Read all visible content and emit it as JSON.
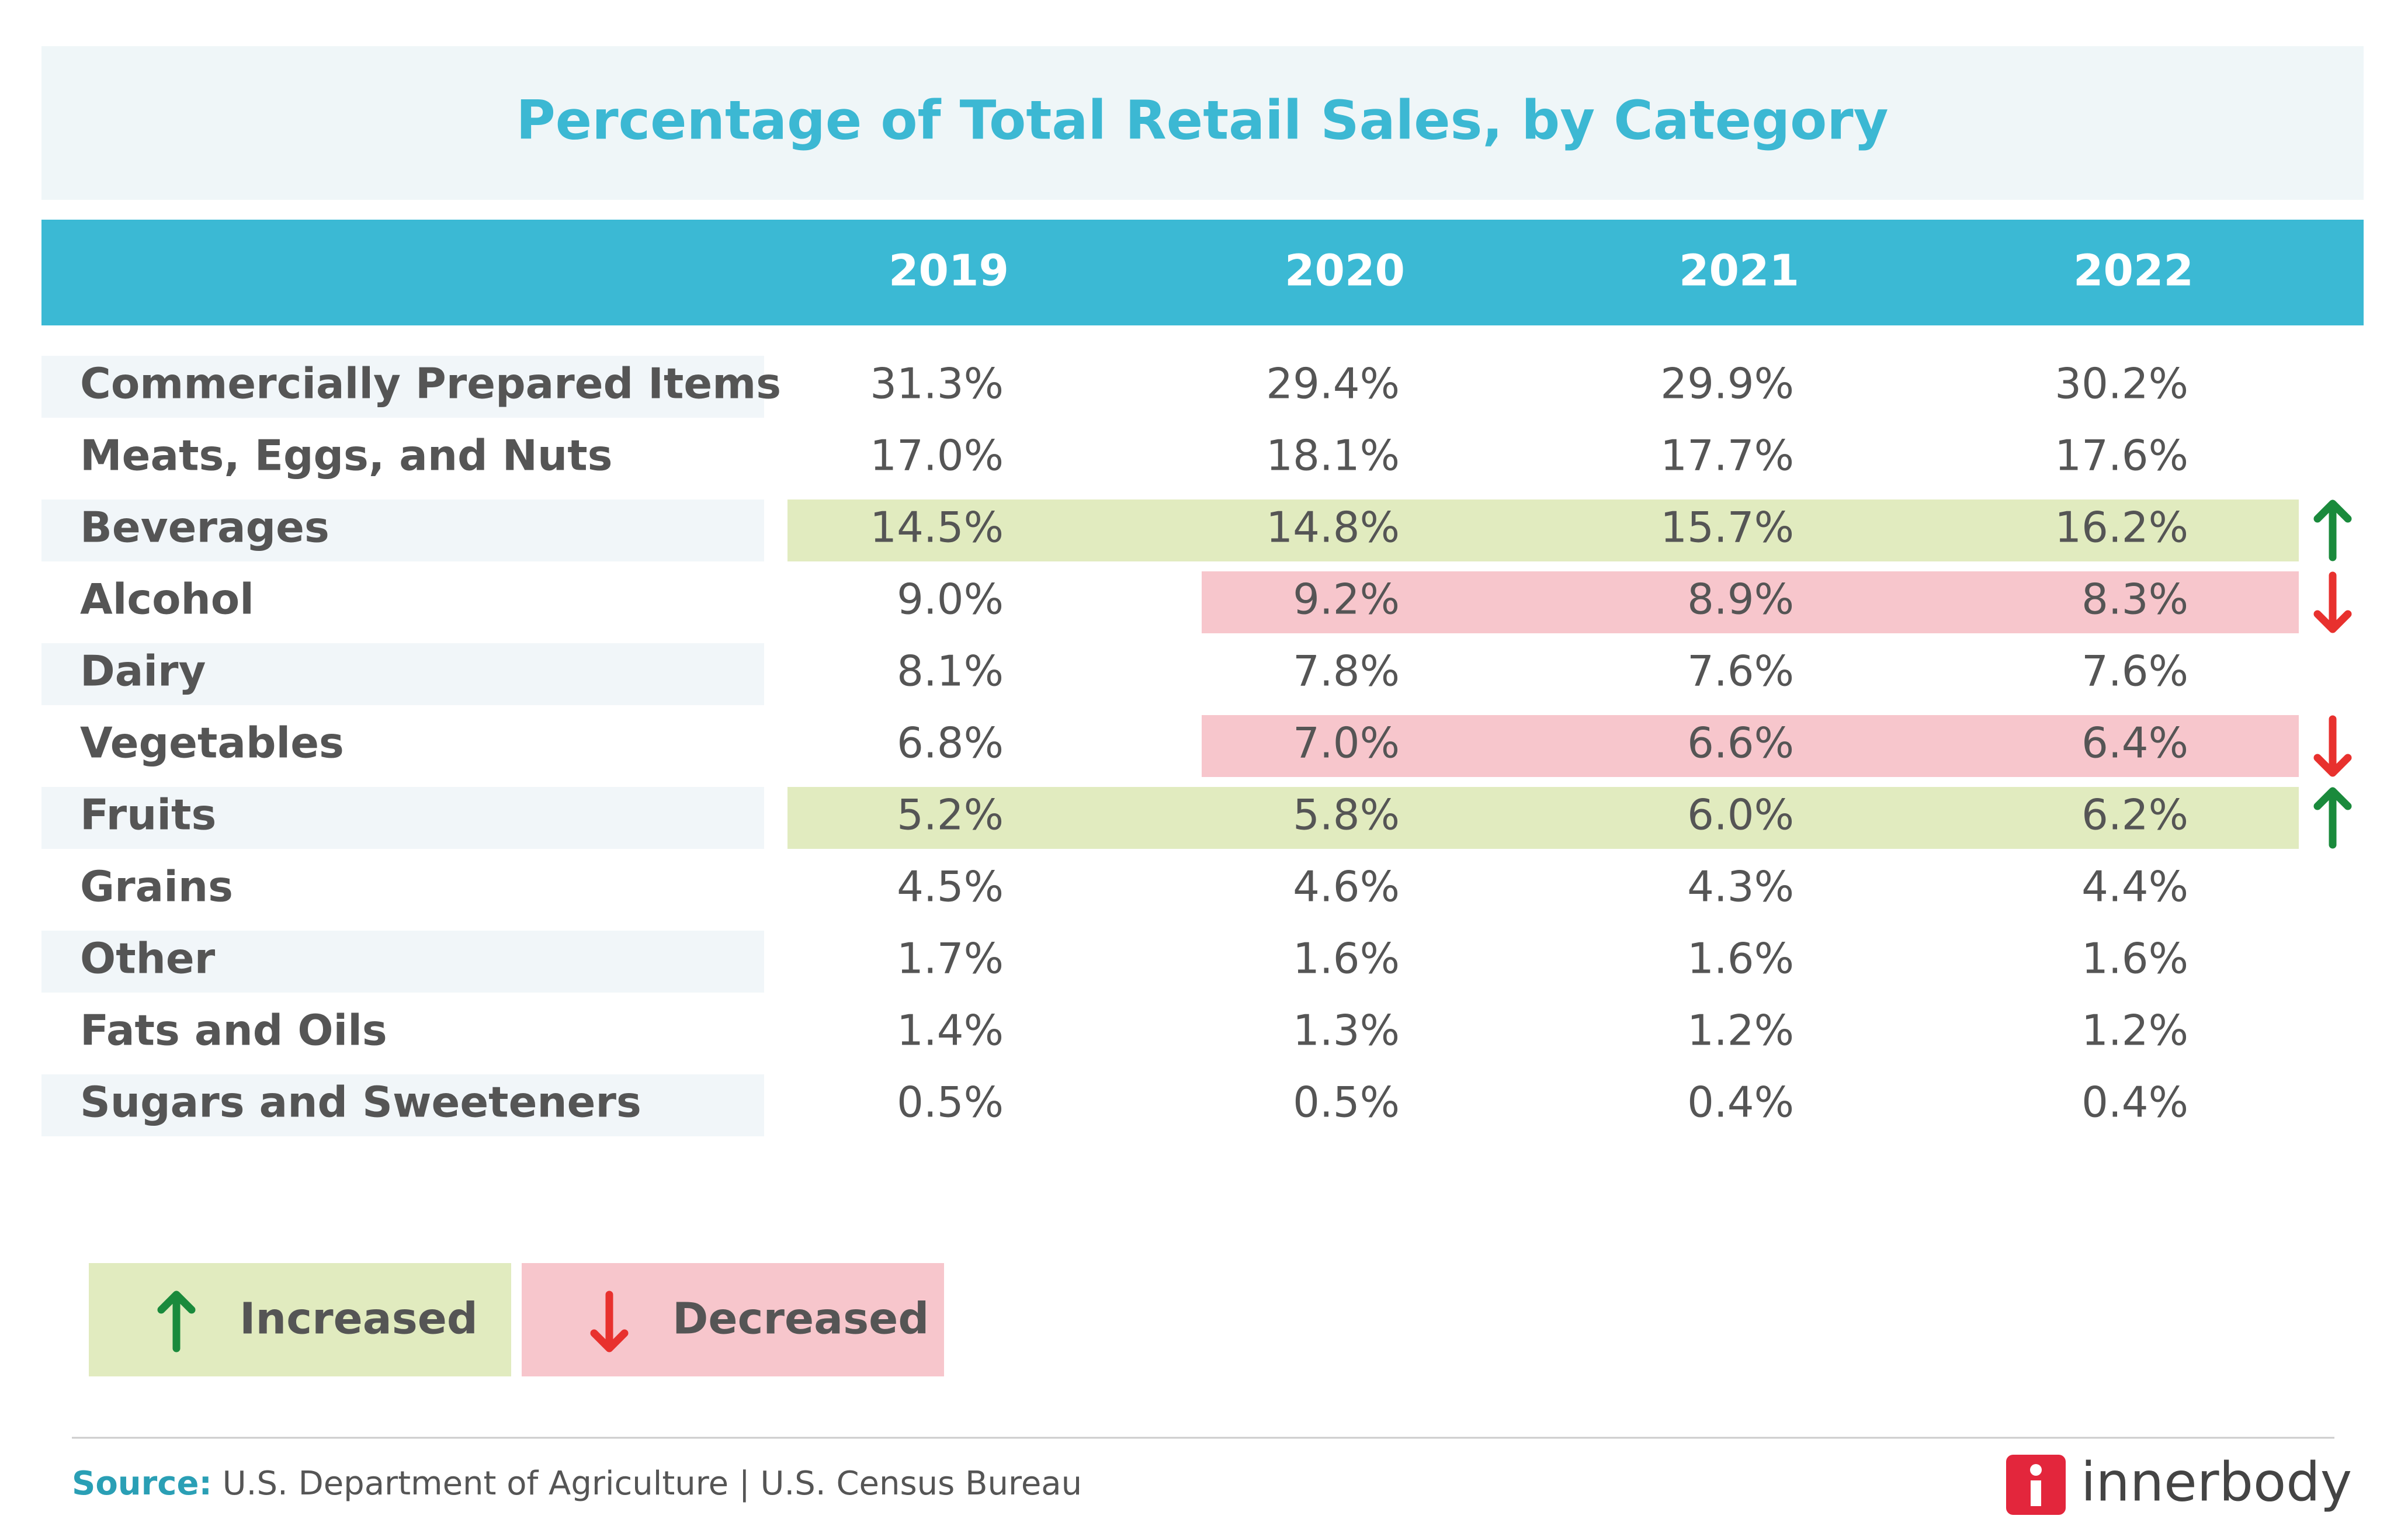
{
  "title": "Percentage of Total Retail Sales, by Category",
  "table": {
    "columns": [
      "2019",
      "2020",
      "2021",
      "2022"
    ],
    "rows": [
      {
        "label": "Commercially Prepared Items",
        "cells": [
          "31.3%",
          "29.4%",
          "29.9%",
          "30.2%"
        ]
      },
      {
        "label": "Meats, Eggs, and Nuts",
        "cells": [
          "17.0%",
          "18.1%",
          "17.7%",
          "17.6%"
        ]
      },
      {
        "label": "Beverages",
        "cells": [
          "14.5%",
          "14.8%",
          "15.7%",
          "16.2%"
        ],
        "change": 0,
        "highlight_start": 0
      },
      {
        "label": "Alcohol",
        "cells": [
          "9.0%",
          "9.2%",
          "8.9%",
          "8.3%"
        ],
        "change": 1,
        "highlight_start": 1
      },
      {
        "label": "Dairy",
        "cells": [
          "8.1%",
          "7.8%",
          "7.6%",
          "7.6%"
        ]
      },
      {
        "label": "Vegetables",
        "cells": [
          "6.8%",
          "7.0%",
          "6.6%",
          "6.4%"
        ],
        "change": 1,
        "highlight_start": 1
      },
      {
        "label": "Fruits",
        "cells": [
          "5.2%",
          "5.8%",
          "6.0%",
          "6.2%"
        ],
        "change": 0,
        "highlight_start": 0
      },
      {
        "label": "Grains",
        "cells": [
          "4.5%",
          "4.6%",
          "4.3%",
          "4.4%"
        ]
      },
      {
        "label": "Other",
        "cells": [
          "1.7%",
          "1.6%",
          "1.6%",
          "1.6%"
        ]
      },
      {
        "label": "Fats and Oils",
        "cells": [
          "1.4%",
          "1.3%",
          "1.2%",
          "1.2%"
        ]
      },
      {
        "label": "Sugars and Sweeteners",
        "cells": [
          "0.5%",
          "0.5%",
          "0.4%",
          "0.4%"
        ]
      }
    ]
  },
  "legend": [
    {
      "label": "Increased",
      "color": "#e1ebbf",
      "arrow": "up",
      "arrow_color": "#1a8a3c"
    },
    {
      "label": "Decreased",
      "color": "#f7c6cc",
      "arrow": "down",
      "arrow_color": "#e8312e"
    }
  ],
  "footer": {
    "source_label": "Source:",
    "source": "U.S. Department of Agriculture | U.S. Census Bureau",
    "brand": "innerbody"
  }
}
